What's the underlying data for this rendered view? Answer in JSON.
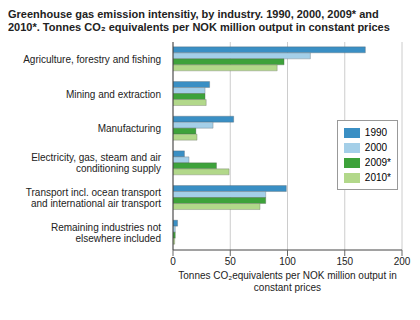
{
  "chart_data": {
    "type": "bar",
    "title": "Greenhouse gas emission intensitiy, by industry. 1990, 2000, 2009* and 2010*. Tonnes CO₂ equivalents per NOK million output in constant prices",
    "xlabel": "Tonnes CO₂equivalents per NOK million output in constant prices",
    "orientation": "horizontal",
    "categories": [
      "Agriculture, forestry and fishing",
      "Mining and extraction",
      "Manufacturing",
      "Electricity, gas, steam and air conditioning supply",
      "Transport incl. ocean transport and international air transport",
      "Remaining industries not elsewhere included"
    ],
    "series": [
      {
        "name": "1990",
        "color": "#3a8fc4",
        "values": [
          168,
          32,
          53,
          10,
          99,
          4
        ]
      },
      {
        "name": "2000",
        "color": "#a4cfe8",
        "values": [
          120,
          28,
          35,
          14,
          81,
          2
        ]
      },
      {
        "name": "2009*",
        "color": "#3da23a",
        "values": [
          97,
          28,
          20,
          38,
          81,
          2
        ]
      },
      {
        "name": "2010*",
        "color": "#b2d88a",
        "values": [
          91,
          29,
          21,
          49,
          76,
          1.5
        ]
      }
    ],
    "xlim": [
      0,
      200
    ],
    "xticks": [
      0,
      50,
      100,
      150,
      200
    ],
    "grid": true,
    "legend": "right"
  }
}
